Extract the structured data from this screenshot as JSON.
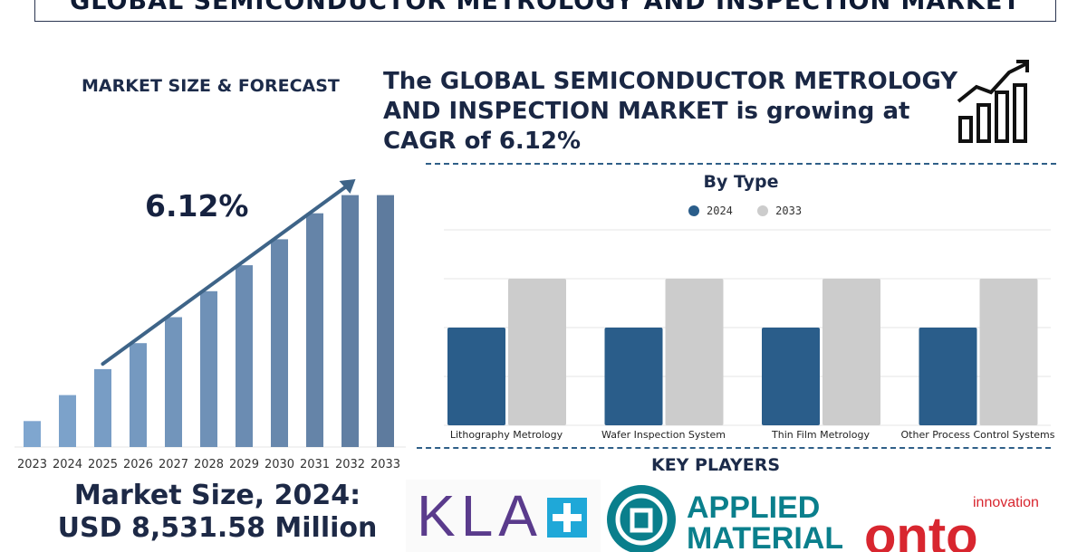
{
  "title": "GLOBAL SEMICONDUCTOR METROLOGY AND INSPECTION MARKET",
  "left_panel": {
    "subtitle": "MARKET SIZE & FORECAST",
    "cagr": "6.12%",
    "market_size_line1": "Market Size, 2024:",
    "market_size_line2": "USD 8,531.58 Million"
  },
  "headline": "The GLOBAL SEMICONDUCTOR METROLOGY AND INSPECTION MARKET is growing at CAGR of 6.12%",
  "icons": [
    "growth-chart-icon",
    "trend-arrow-icon"
  ],
  "colors": {
    "bar_light": "#7fa6cf",
    "bar_dark": "#5e7b9e",
    "series_2024": "#2a5d8a",
    "series_2033": "#cccccc",
    "arrow": "#3e6488",
    "dash": "#2f5f88"
  },
  "key_players": {
    "title": "KEY PLAYERS",
    "logos": [
      {
        "name": "KLA",
        "text": "KLA"
      },
      {
        "name": "Applied Materials",
        "text1": "APPLIED",
        "text2": "MATERIALS"
      },
      {
        "name": "Onto Innovation",
        "text1": "innovation",
        "text2": "onto"
      }
    ]
  },
  "chart_data": [
    {
      "type": "bar",
      "categories": [
        "2023",
        "2024",
        "2025",
        "2026",
        "2027",
        "2028",
        "2029",
        "2030",
        "2031",
        "2032",
        "2033"
      ],
      "values": [
        1.0,
        2.0,
        3.0,
        4.0,
        5.0,
        6.0,
        7.0,
        8.0,
        9.0,
        9.7,
        9.7
      ],
      "title": "",
      "xlabel": "",
      "ylabel": "",
      "ylim": [
        0,
        10
      ]
    },
    {
      "type": "bar",
      "title": "By Type",
      "categories": [
        "Lithography Metrology",
        "Wafer Inspection System",
        "Thin Film Metrology",
        "Other Process Control Systems"
      ],
      "series": [
        {
          "name": "2024",
          "values": [
            4,
            4,
            4,
            4
          ]
        },
        {
          "name": "2033",
          "values": [
            6,
            6,
            6,
            6
          ]
        }
      ],
      "ylim": [
        0,
        8
      ],
      "grid": true,
      "legend": "top-center"
    }
  ]
}
